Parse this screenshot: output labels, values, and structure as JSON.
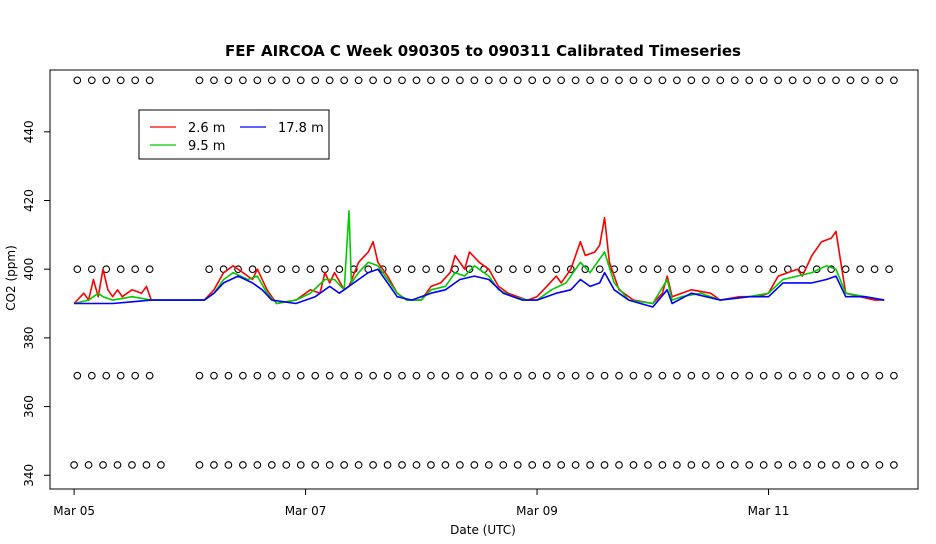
{
  "chart_data": {
    "type": "line",
    "title": "FEF AIRCOA C  Week 090305 to 090311  Calibrated Timeseries",
    "xlabel": "Date (UTC)",
    "ylabel": "CO2 (ppm)",
    "xlim": [
      "2009-03-04T19:00Z",
      "2009-03-12T07:00Z"
    ],
    "ylim": [
      336,
      458
    ],
    "x_ticks": [
      {
        "label": "Mar 05",
        "date": "2009-03-05T00:00Z"
      },
      {
        "label": "Mar 07",
        "date": "2009-03-07T00:00Z"
      },
      {
        "label": "Mar 09",
        "date": "2009-03-09T00:00Z"
      },
      {
        "label": "Mar 11",
        "date": "2009-03-11T00:00Z"
      }
    ],
    "y_ticks": [
      340,
      360,
      380,
      400,
      420,
      440
    ],
    "legend": {
      "placement": "top-left",
      "entries": [
        {
          "label": "2.6 m",
          "color": "#ff0000"
        },
        {
          "label": "17.8 m",
          "color": "#0000ff"
        },
        {
          "label": "9.5 m",
          "color": "#00cc00"
        }
      ]
    },
    "series": [
      {
        "name": "2.6 m",
        "color": "#ff0000",
        "points": [
          [
            "2009-03-05T00:00Z",
            390
          ],
          [
            "2009-03-05T02:00Z",
            393
          ],
          [
            "2009-03-05T03:00Z",
            391
          ],
          [
            "2009-03-05T04:00Z",
            397
          ],
          [
            "2009-03-05T05:00Z",
            392
          ],
          [
            "2009-03-05T06:00Z",
            400
          ],
          [
            "2009-03-05T07:00Z",
            394
          ],
          [
            "2009-03-05T08:00Z",
            392
          ],
          [
            "2009-03-05T09:00Z",
            394
          ],
          [
            "2009-03-05T10:00Z",
            392
          ],
          [
            "2009-03-05T12:00Z",
            394
          ],
          [
            "2009-03-05T14:00Z",
            393
          ],
          [
            "2009-03-05T15:00Z",
            395
          ],
          [
            "2009-03-05T16:00Z",
            391
          ],
          [
            "2009-03-06T00:00Z",
            391
          ],
          [
            "2009-03-06T03:00Z",
            391
          ],
          [
            "2009-03-06T05:00Z",
            394
          ],
          [
            "2009-03-06T07:00Z",
            399
          ],
          [
            "2009-03-06T09:00Z",
            401
          ],
          [
            "2009-03-06T11:00Z",
            399
          ],
          [
            "2009-03-06T13:00Z",
            397
          ],
          [
            "2009-03-06T14:00Z",
            400
          ],
          [
            "2009-03-06T16:00Z",
            394
          ],
          [
            "2009-03-06T18:00Z",
            390
          ],
          [
            "2009-03-06T22:00Z",
            391
          ],
          [
            "2009-03-07T01:00Z",
            394
          ],
          [
            "2009-03-07T03:00Z",
            393
          ],
          [
            "2009-03-07T04:00Z",
            399
          ],
          [
            "2009-03-07T05:00Z",
            396
          ],
          [
            "2009-03-07T06:00Z",
            399
          ],
          [
            "2009-03-07T08:00Z",
            394
          ],
          [
            "2009-03-07T09:00Z",
            395
          ],
          [
            "2009-03-07T11:00Z",
            402
          ],
          [
            "2009-03-07T13:00Z",
            405
          ],
          [
            "2009-03-07T14:00Z",
            408
          ],
          [
            "2009-03-07T15:00Z",
            402
          ],
          [
            "2009-03-07T17:00Z",
            398
          ],
          [
            "2009-03-07T19:00Z",
            393
          ],
          [
            "2009-03-07T21:00Z",
            391
          ],
          [
            "2009-03-08T00:00Z",
            391
          ],
          [
            "2009-03-08T02:00Z",
            395
          ],
          [
            "2009-03-08T04:00Z",
            396
          ],
          [
            "2009-03-08T06:00Z",
            399
          ],
          [
            "2009-03-08T07:00Z",
            404
          ],
          [
            "2009-03-08T09:00Z",
            400
          ],
          [
            "2009-03-08T10:00Z",
            405
          ],
          [
            "2009-03-08T12:00Z",
            402
          ],
          [
            "2009-03-08T14:00Z",
            400
          ],
          [
            "2009-03-08T16:00Z",
            395
          ],
          [
            "2009-03-08T18:00Z",
            393
          ],
          [
            "2009-03-08T20:00Z",
            392
          ],
          [
            "2009-03-08T22:00Z",
            391
          ],
          [
            "2009-03-09T00:00Z",
            392
          ],
          [
            "2009-03-09T02:00Z",
            395
          ],
          [
            "2009-03-09T04:00Z",
            398
          ],
          [
            "2009-03-09T05:00Z",
            396
          ],
          [
            "2009-03-09T07:00Z",
            400
          ],
          [
            "2009-03-09T09:00Z",
            408
          ],
          [
            "2009-03-09T10:00Z",
            404
          ],
          [
            "2009-03-09T12:00Z",
            405
          ],
          [
            "2009-03-09T13:00Z",
            407
          ],
          [
            "2009-03-09T14:00Z",
            415
          ],
          [
            "2009-03-09T15:00Z",
            402
          ],
          [
            "2009-03-09T17:00Z",
            394
          ],
          [
            "2009-03-09T20:00Z",
            391
          ],
          [
            "2009-03-10T00:00Z",
            390
          ],
          [
            "2009-03-10T02:00Z",
            393
          ],
          [
            "2009-03-10T03:00Z",
            398
          ],
          [
            "2009-03-10T04:00Z",
            392
          ],
          [
            "2009-03-10T06:00Z",
            393
          ],
          [
            "2009-03-10T08:00Z",
            394
          ],
          [
            "2009-03-10T12:00Z",
            393
          ],
          [
            "2009-03-10T14:00Z",
            391
          ],
          [
            "2009-03-10T18:00Z",
            392
          ],
          [
            "2009-03-10T22:00Z",
            392
          ],
          [
            "2009-03-11T00:00Z",
            393
          ],
          [
            "2009-03-11T02:00Z",
            398
          ],
          [
            "2009-03-11T04:00Z",
            399
          ],
          [
            "2009-03-11T06:00Z",
            400
          ],
          [
            "2009-03-11T07:00Z",
            398
          ],
          [
            "2009-03-11T09:00Z",
            404
          ],
          [
            "2009-03-11T11:00Z",
            408
          ],
          [
            "2009-03-11T13:00Z",
            409
          ],
          [
            "2009-03-11T14:00Z",
            411
          ],
          [
            "2009-03-11T15:00Z",
            402
          ],
          [
            "2009-03-11T16:00Z",
            393
          ],
          [
            "2009-03-11T19:00Z",
            392
          ],
          [
            "2009-03-11T22:00Z",
            391
          ],
          [
            "2009-03-12T00:00Z",
            391
          ]
        ]
      },
      {
        "name": "9.5 m",
        "color": "#00cc00",
        "points": [
          [
            "2009-03-05T00:00Z",
            390
          ],
          [
            "2009-03-05T03:00Z",
            391
          ],
          [
            "2009-03-05T05:00Z",
            393
          ],
          [
            "2009-03-05T06:00Z",
            392
          ],
          [
            "2009-03-05T08:00Z",
            391
          ],
          [
            "2009-03-05T12:00Z",
            392
          ],
          [
            "2009-03-05T16:00Z",
            391
          ],
          [
            "2009-03-06T00:00Z",
            391
          ],
          [
            "2009-03-06T03:00Z",
            391
          ],
          [
            "2009-03-06T05:00Z",
            393
          ],
          [
            "2009-03-06T07:00Z",
            397
          ],
          [
            "2009-03-06T09:00Z",
            399
          ],
          [
            "2009-03-06T12:00Z",
            397
          ],
          [
            "2009-03-06T14:00Z",
            398
          ],
          [
            "2009-03-06T16:00Z",
            393
          ],
          [
            "2009-03-06T18:00Z",
            390
          ],
          [
            "2009-03-06T22:00Z",
            391
          ],
          [
            "2009-03-07T01:00Z",
            393
          ],
          [
            "2009-03-07T04:00Z",
            397
          ],
          [
            "2009-03-07T06:00Z",
            397
          ],
          [
            "2009-03-07T08:00Z",
            394
          ],
          [
            "2009-03-07T09:00Z",
            417
          ],
          [
            "2009-03-07T09:30Z",
            396
          ],
          [
            "2009-03-07T11:00Z",
            399
          ],
          [
            "2009-03-07T13:00Z",
            402
          ],
          [
            "2009-03-07T15:00Z",
            401
          ],
          [
            "2009-03-07T17:00Z",
            397
          ],
          [
            "2009-03-07T19:00Z",
            393
          ],
          [
            "2009-03-07T21:00Z",
            391
          ],
          [
            "2009-03-08T00:00Z",
            391
          ],
          [
            "2009-03-08T02:00Z",
            394
          ],
          [
            "2009-03-08T05:00Z",
            395
          ],
          [
            "2009-03-08T07:00Z",
            399
          ],
          [
            "2009-03-08T09:00Z",
            398
          ],
          [
            "2009-03-08T11:00Z",
            401
          ],
          [
            "2009-03-08T14:00Z",
            398
          ],
          [
            "2009-03-08T16:00Z",
            394
          ],
          [
            "2009-03-08T19:00Z",
            392
          ],
          [
            "2009-03-08T22:00Z",
            391
          ],
          [
            "2009-03-09T00:00Z",
            391
          ],
          [
            "2009-03-09T03:00Z",
            394
          ],
          [
            "2009-03-09T06:00Z",
            396
          ],
          [
            "2009-03-09T09:00Z",
            402
          ],
          [
            "2009-03-09T11:00Z",
            399
          ],
          [
            "2009-03-09T13:00Z",
            403
          ],
          [
            "2009-03-09T14:00Z",
            405
          ],
          [
            "2009-03-09T16:00Z",
            396
          ],
          [
            "2009-03-09T19:00Z",
            391
          ],
          [
            "2009-03-10T00:00Z",
            390
          ],
          [
            "2009-03-10T03:00Z",
            397
          ],
          [
            "2009-03-10T04:00Z",
            391
          ],
          [
            "2009-03-10T06:00Z",
            392
          ],
          [
            "2009-03-10T10:00Z",
            393
          ],
          [
            "2009-03-10T14:00Z",
            391
          ],
          [
            "2009-03-10T20:00Z",
            392
          ],
          [
            "2009-03-11T00:00Z",
            393
          ],
          [
            "2009-03-11T03:00Z",
            397
          ],
          [
            "2009-03-11T06:00Z",
            398
          ],
          [
            "2009-03-11T09:00Z",
            399
          ],
          [
            "2009-03-11T12:00Z",
            401
          ],
          [
            "2009-03-11T14:00Z",
            400
          ],
          [
            "2009-03-11T16:00Z",
            393
          ],
          [
            "2009-03-11T20:00Z",
            392
          ],
          [
            "2009-03-12T00:00Z",
            391
          ]
        ]
      },
      {
        "name": "17.8 m",
        "color": "#0000ff",
        "points": [
          [
            "2009-03-05T00:00Z",
            390
          ],
          [
            "2009-03-05T04:00Z",
            390
          ],
          [
            "2009-03-05T08:00Z",
            390
          ],
          [
            "2009-03-05T12:00Z",
            390.5
          ],
          [
            "2009-03-05T16:00Z",
            391
          ],
          [
            "2009-03-06T00:00Z",
            391
          ],
          [
            "2009-03-06T03:00Z",
            391
          ],
          [
            "2009-03-06T05:00Z",
            393
          ],
          [
            "2009-03-06T07:00Z",
            396
          ],
          [
            "2009-03-06T10:00Z",
            398
          ],
          [
            "2009-03-06T13:00Z",
            396
          ],
          [
            "2009-03-06T15:00Z",
            394
          ],
          [
            "2009-03-06T17:00Z",
            391
          ],
          [
            "2009-03-06T22:00Z",
            390
          ],
          [
            "2009-03-07T02:00Z",
            392
          ],
          [
            "2009-03-07T05:00Z",
            395
          ],
          [
            "2009-03-07T07:00Z",
            393
          ],
          [
            "2009-03-07T10:00Z",
            396
          ],
          [
            "2009-03-07T13:00Z",
            399
          ],
          [
            "2009-03-07T15:00Z",
            400
          ],
          [
            "2009-03-07T17:00Z",
            396
          ],
          [
            "2009-03-07T19:00Z",
            392
          ],
          [
            "2009-03-07T22:00Z",
            391
          ],
          [
            "2009-03-08T02:00Z",
            393
          ],
          [
            "2009-03-08T05:00Z",
            394
          ],
          [
            "2009-03-08T08:00Z",
            397
          ],
          [
            "2009-03-08T11:00Z",
            398
          ],
          [
            "2009-03-08T14:00Z",
            397
          ],
          [
            "2009-03-08T17:00Z",
            393
          ],
          [
            "2009-03-08T21:00Z",
            391
          ],
          [
            "2009-03-09T00:00Z",
            391
          ],
          [
            "2009-03-09T04:00Z",
            393
          ],
          [
            "2009-03-09T07:00Z",
            394
          ],
          [
            "2009-03-09T09:00Z",
            397
          ],
          [
            "2009-03-09T11:00Z",
            395
          ],
          [
            "2009-03-09T13:00Z",
            396
          ],
          [
            "2009-03-09T14:00Z",
            399
          ],
          [
            "2009-03-09T16:00Z",
            394
          ],
          [
            "2009-03-09T19:00Z",
            391
          ],
          [
            "2009-03-10T00:00Z",
            389
          ],
          [
            "2009-03-10T03:00Z",
            394
          ],
          [
            "2009-03-10T04:00Z",
            390
          ],
          [
            "2009-03-10T08:00Z",
            393
          ],
          [
            "2009-03-10T14:00Z",
            391
          ],
          [
            "2009-03-10T20:00Z",
            392
          ],
          [
            "2009-03-11T00:00Z",
            392
          ],
          [
            "2009-03-11T03:00Z",
            396
          ],
          [
            "2009-03-11T06:00Z",
            396
          ],
          [
            "2009-03-11T09:00Z",
            396
          ],
          [
            "2009-03-11T12:00Z",
            397
          ],
          [
            "2009-03-11T14:00Z",
            398
          ],
          [
            "2009-03-11T16:00Z",
            392
          ],
          [
            "2009-03-11T20:00Z",
            392
          ],
          [
            "2009-03-12T00:00Z",
            391
          ]
        ]
      }
    ],
    "calibration_markers": [
      {
        "y": 455,
        "segments": [
          [
            "2009-03-05T00:40Z",
            "2009-03-05T18:00Z"
          ],
          [
            "2009-03-06T02:00Z",
            "2009-03-12T03:00Z"
          ]
        ]
      },
      {
        "y": 400,
        "segments": [
          [
            "2009-03-05T00:40Z",
            "2009-03-05T18:00Z"
          ],
          [
            "2009-03-06T04:00Z",
            "2009-03-12T03:00Z"
          ]
        ]
      },
      {
        "y": 369,
        "segments": [
          [
            "2009-03-05T00:40Z",
            "2009-03-05T18:00Z"
          ],
          [
            "2009-03-06T02:00Z",
            "2009-03-12T03:00Z"
          ]
        ]
      },
      {
        "y": 343,
        "segments": [
          [
            "2009-03-05T00:00Z",
            "2009-03-05T18:00Z"
          ],
          [
            "2009-03-06T02:00Z",
            "2009-03-12T03:00Z"
          ]
        ]
      }
    ],
    "marker_interval_hours": 3,
    "grid": false
  }
}
